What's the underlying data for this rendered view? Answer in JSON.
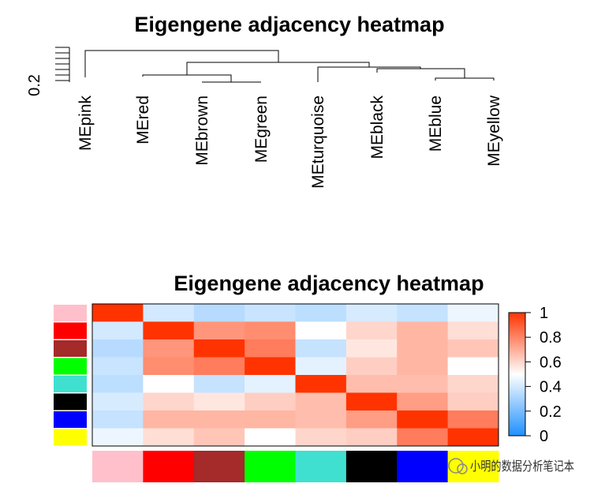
{
  "chart_data": [
    {
      "type": "dendrogram",
      "title": "Eigengene adjacency heatmap",
      "y_tick_label": "0.2",
      "leaves": [
        "MEpink",
        "MEred",
        "MEbrown",
        "MEgreen",
        "MEturquoise",
        "MEblack",
        "MEblue",
        "MEyellow"
      ]
    },
    {
      "type": "heatmap",
      "title": "Eigengene adjacency heatmap",
      "rows": [
        "MEpink",
        "MEred",
        "MEbrown",
        "MEgreen",
        "MEturquoise",
        "MEblack",
        "MEblue",
        "MEyellow"
      ],
      "columns": [
        "MEpink",
        "MEred",
        "MEbrown",
        "MEgreen",
        "MEturquoise",
        "MEblack",
        "MEblue",
        "MEyellow"
      ],
      "module_colors": [
        "#FFC0CB",
        "#FF0000",
        "#A52A2A",
        "#00FF00",
        "#40E0D0",
        "#000000",
        "#0000FF",
        "#FFFF00"
      ],
      "values": [
        [
          1.0,
          0.4,
          0.34,
          0.38,
          0.35,
          0.41,
          0.37,
          0.46
        ],
        [
          0.4,
          1.0,
          0.76,
          0.78,
          0.5,
          0.6,
          0.68,
          0.58
        ],
        [
          0.34,
          0.76,
          1.0,
          0.82,
          0.37,
          0.56,
          0.68,
          0.64
        ],
        [
          0.38,
          0.78,
          0.82,
          1.0,
          0.44,
          0.62,
          0.68,
          0.5
        ],
        [
          0.35,
          0.5,
          0.37,
          0.44,
          1.0,
          0.66,
          0.66,
          0.6
        ],
        [
          0.41,
          0.6,
          0.56,
          0.62,
          0.66,
          1.0,
          0.74,
          0.62
        ],
        [
          0.37,
          0.68,
          0.68,
          0.68,
          0.66,
          0.74,
          1.0,
          0.82
        ],
        [
          0.46,
          0.58,
          0.64,
          0.5,
          0.6,
          0.62,
          0.82,
          1.0
        ]
      ],
      "colorbar": {
        "range": [
          0,
          1
        ],
        "ticks": [
          "0",
          "0.2",
          "0.4",
          "0.6",
          "0.8",
          "1"
        ],
        "low_color": "#1E90FF",
        "mid_color": "#FFFFFF",
        "high_color": "#FF3300"
      }
    }
  ],
  "watermark": "小明的数据分析笔记本"
}
